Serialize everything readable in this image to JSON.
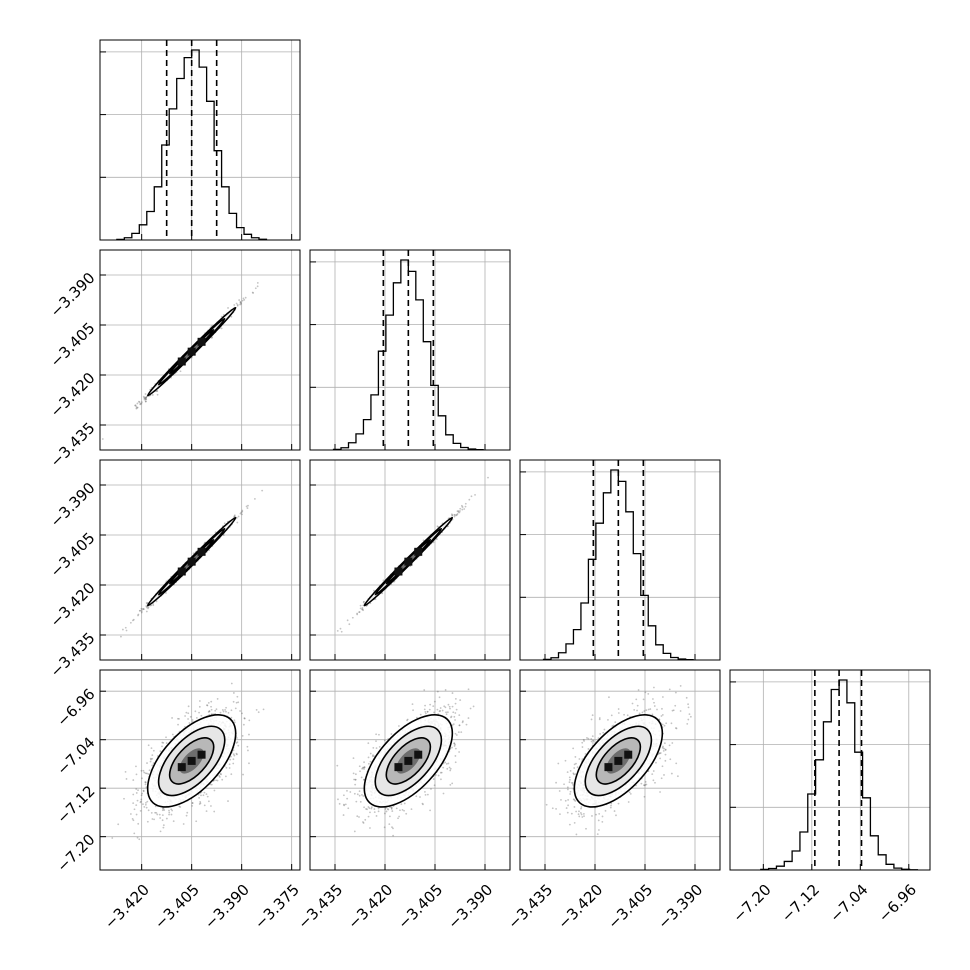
{
  "chart_data": {
    "type": "scatter",
    "subtype": "corner-plot",
    "title": "",
    "n_params": 4,
    "grid": true,
    "colors": {
      "line": "#000000",
      "grid": "#b0b0b0",
      "points": "#555555"
    },
    "params": [
      {
        "range": [
          -3.4325,
          -3.3725
        ],
        "ticks": [
          -3.42,
          -3.405,
          -3.39,
          -3.375
        ],
        "tick_labels": [
          "−3.420",
          "−3.405",
          "−3.390",
          "−3.375"
        ],
        "quantiles": [
          -3.4125,
          -3.405,
          -3.3975
        ],
        "mean": -3.405,
        "std": 0.0066,
        "hist_counts": [
          0.3,
          1.2,
          3.5,
          8,
          15,
          28,
          50,
          69,
          85,
          96,
          100,
          91,
          73,
          47,
          28,
          14,
          6.5,
          3,
          1.2,
          0.4
        ]
      },
      {
        "range": [
          -3.4425,
          -3.3825
        ],
        "ticks": [
          -3.435,
          -3.42,
          -3.405,
          -3.39
        ],
        "tick_labels": [
          "−3.435",
          "−3.420",
          "−3.405",
          "−3.390"
        ],
        "quantiles": [
          -3.4205,
          -3.413,
          -3.4055
        ],
        "mean": -3.413,
        "std": 0.0066,
        "hist_counts": [
          0.3,
          1.2,
          3.8,
          8.5,
          16,
          29,
          52,
          71,
          88,
          100,
          94,
          79,
          57,
          34,
          18,
          8,
          3.5,
          1.3,
          0.5,
          0.2
        ]
      },
      {
        "range": [
          -3.4425,
          -3.3825
        ],
        "ticks": [
          -3.435,
          -3.42,
          -3.405,
          -3.39
        ],
        "tick_labels": [
          "−3.435",
          "−3.420",
          "−3.405",
          "−3.390"
        ],
        "quantiles": [
          -3.4205,
          -3.413,
          -3.4055
        ],
        "mean": -3.413,
        "std": 0.0066,
        "hist_counts": [
          0.3,
          1.2,
          3.8,
          8.5,
          16,
          30,
          53,
          72,
          88,
          100,
          94,
          78,
          56,
          34,
          18,
          8,
          3.5,
          1.3,
          0.5,
          0.2
        ]
      },
      {
        "range": [
          -7.255,
          -6.925
        ],
        "ticks": [
          -7.2,
          -7.12,
          -7.04,
          -6.96
        ],
        "tick_labels": [
          "−7.20",
          "−7.12",
          "−7.04",
          "−6.96"
        ],
        "quantiles": [
          -7.115,
          -7.075,
          -7.038
        ],
        "mean": -7.075,
        "std": 0.038,
        "hist_counts": [
          0.3,
          0.8,
          2,
          4.5,
          10,
          20,
          40,
          58,
          78,
          95,
          100,
          88,
          62,
          38,
          18,
          8,
          3,
          1,
          0.4,
          0.1
        ]
      }
    ],
    "correlations": [
      [
        1,
        0.995,
        0.995,
        0.6
      ],
      [
        0.995,
        1,
        0.995,
        0.6
      ],
      [
        0.995,
        0.995,
        1,
        0.6
      ],
      [
        0.6,
        0.6,
        0.6,
        1
      ]
    ]
  }
}
